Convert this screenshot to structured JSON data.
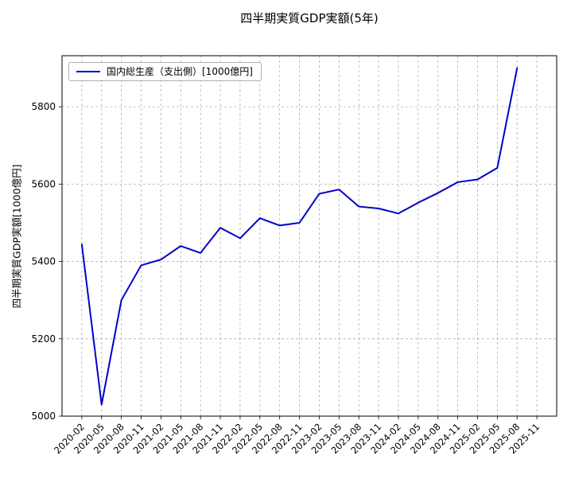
{
  "chart_data": {
    "type": "line",
    "title": "四半期実質GDP実額(5年)",
    "ylabel": "四半期実質GDP実額[1000億円]",
    "xlabel": "",
    "legend": [
      "国内総生産（支出側）[1000億円]"
    ],
    "legend_position": "upper left",
    "grid": true,
    "grid_style": "dashed",
    "grid_color": "#b0b0b0",
    "line_color": "#0000cc",
    "ylim": [
      5000,
      5932
    ],
    "yticks": [
      5000,
      5200,
      5400,
      5600,
      5800
    ],
    "x_tick_labels": [
      "2020-02",
      "2020-05",
      "2020-08",
      "2020-11",
      "2021-02",
      "2021-05",
      "2021-08",
      "2021-11",
      "2022-02",
      "2022-05",
      "2022-08",
      "2022-11",
      "2023-02",
      "2023-05",
      "2023-08",
      "2023-11",
      "2024-02",
      "2024-05",
      "2024-08",
      "2024-11",
      "2025-02",
      "2025-05",
      "2025-08",
      "2025-11"
    ],
    "series": [
      {
        "name": "国内総生産（支出側）[1000億円]",
        "x": [
          "2020-02",
          "2020-05",
          "2020-08",
          "2020-11",
          "2021-02",
          "2021-05",
          "2021-08",
          "2021-11",
          "2022-02",
          "2022-05",
          "2022-08",
          "2022-11",
          "2023-02",
          "2023-05",
          "2023-08",
          "2023-11",
          "2024-02",
          "2024-05",
          "2024-08",
          "2024-11",
          "2025-02",
          "2025-05",
          "2025-08"
        ],
        "values": [
          5444,
          5030,
          5300,
          5390,
          5405,
          5440,
          5422,
          5487,
          5460,
          5512,
          5493,
          5500,
          5575,
          5586,
          5542,
          5537,
          5524,
          5552,
          5577,
          5605,
          5612,
          5642,
          5900
        ]
      }
    ]
  }
}
